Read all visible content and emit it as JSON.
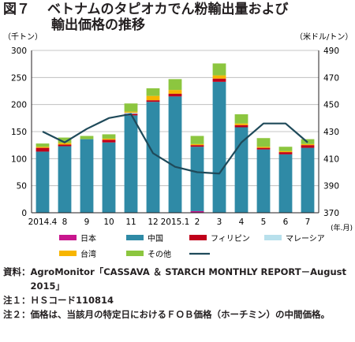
{
  "title": {
    "fig_no": "図７",
    "line1": "ベトナムのタピオカでん粉輸出量および",
    "line2": "輸出価格の推移"
  },
  "chart_data": {
    "type": "bar",
    "stacked": true,
    "categories": [
      "2014.4",
      "8",
      "9",
      "10",
      "11",
      "12",
      "2015.1",
      "2",
      "3",
      "4",
      "5",
      "6",
      "7"
    ],
    "x_unit": "(年.月)",
    "ylabel": "（千トン）",
    "ylim": [
      0,
      300
    ],
    "yticks": [
      0,
      50,
      100,
      150,
      200,
      250,
      300
    ],
    "y2label": "（米ドル/トン）",
    "y2lim": [
      370,
      490
    ],
    "y2ticks": [
      370,
      390,
      410,
      430,
      450,
      470,
      490
    ],
    "grid": true,
    "legend_position": "bottom",
    "series": [
      {
        "name": "日本",
        "color": "#c8168d",
        "values": [
          0,
          0,
          0,
          0,
          0,
          0,
          0,
          3,
          0,
          0,
          0,
          0,
          0
        ]
      },
      {
        "name": "中国",
        "color": "#2f8aa6",
        "values": [
          113,
          123,
          136,
          130,
          180,
          205,
          215,
          119,
          242,
          158,
          117,
          108,
          120
        ]
      },
      {
        "name": "フィリピン",
        "color": "#c0001a",
        "values": [
          7,
          3,
          0,
          5,
          3,
          3,
          5,
          3,
          6,
          4,
          3,
          4,
          5
        ]
      },
      {
        "name": "マレーシア",
        "color": "#b8e0ec",
        "values": [
          0,
          0,
          0,
          0,
          2,
          0,
          0,
          0,
          0,
          0,
          0,
          0,
          0
        ]
      },
      {
        "name": "台湾",
        "color": "#f7b500",
        "values": [
          2,
          3,
          0,
          2,
          2,
          8,
          7,
          2,
          6,
          3,
          2,
          2,
          2
        ]
      },
      {
        "name": "その他",
        "color": "#8cc63f",
        "values": [
          6,
          10,
          6,
          8,
          15,
          14,
          20,
          15,
          22,
          17,
          16,
          8,
          9
        ]
      }
    ],
    "line_series": {
      "name": "",
      "color": "#1f4a5a",
      "axis": "right",
      "values": [
        430,
        422,
        432,
        440,
        443,
        414,
        404,
        400,
        399,
        422,
        436,
        436,
        422
      ]
    }
  },
  "notes": [
    {
      "head": "資料：",
      "body": "AgroMonitor「CASSAVA ＆ STARCH MONTHLY REPORT－August 2015」"
    },
    {
      "head": "注１：",
      "body": "ＨＳコード110814"
    },
    {
      "head": "注２：",
      "body": "価格は、当該月の特定日におけるＦＯＢ価格（ホーチミン）の中間価格。"
    }
  ]
}
